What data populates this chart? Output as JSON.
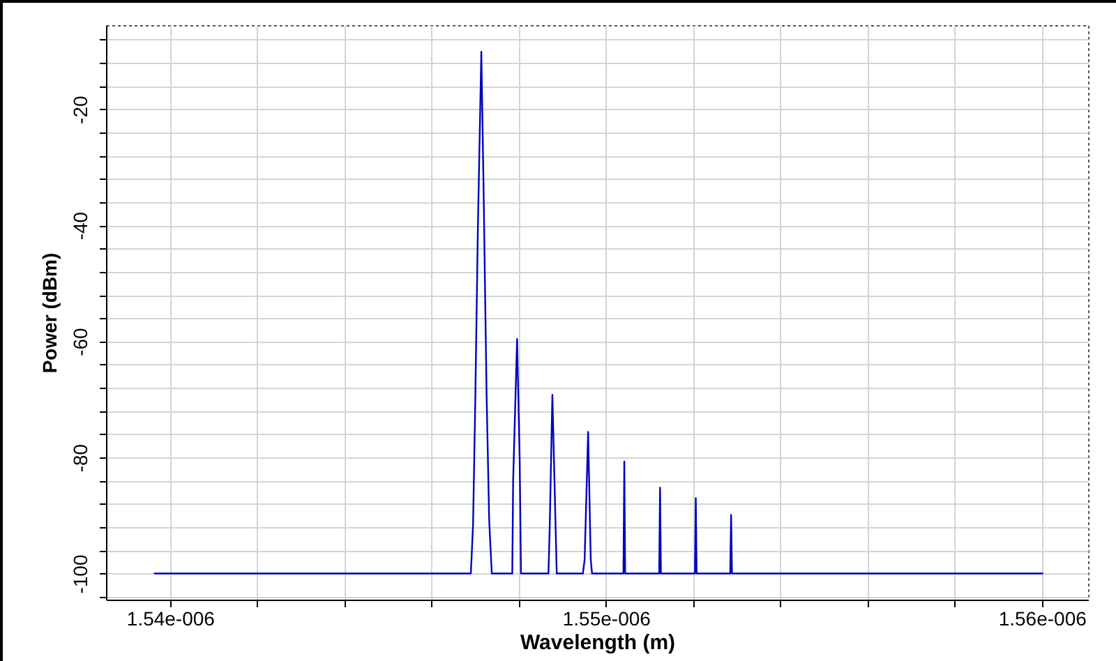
{
  "chart_data": {
    "type": "line",
    "xlabel": "Wavelength (m)",
    "ylabel": "Power (dBm)",
    "x": [
      1.53963e-06,
      1.5469e-06,
      1.54695e-06,
      1.547e-06,
      1.54706e-06,
      1.54714e-06,
      1.54719e-06,
      1.54726e-06,
      1.54732e-06,
      1.54738e-06,
      1.54785e-06,
      1.54787e-06,
      1.54796e-06,
      1.54802e-06,
      1.54805e-06,
      1.54868e-06,
      1.54871e-06,
      1.54877e-06,
      1.54884e-06,
      1.54887e-06,
      1.54947e-06,
      1.54951e-06,
      1.54959e-06,
      1.54965e-06,
      1.54968e-06,
      1.5504e-06,
      1.55042e-06,
      1.55044e-06,
      1.55122e-06,
      1.55124e-06,
      1.55126e-06,
      1.55204e-06,
      1.55206e-06,
      1.55208e-06,
      1.55285e-06,
      1.55287e-06,
      1.55289e-06,
      1.56003e-06
    ],
    "series": [
      {
        "color": "#0000c0",
        "values": [
          -100,
          -100,
          -91.6,
          -70.8,
          -40.9,
          -10.1,
          -32.9,
          -68.8,
          -90.8,
          -100,
          -100,
          -84,
          -59.6,
          -80.3,
          -100,
          -100,
          -91.6,
          -69.2,
          -90.8,
          -100,
          -100,
          -97.6,
          -75.6,
          -97.6,
          -100,
          -100,
          -80.7,
          -100,
          -100,
          -85.2,
          -100,
          -100,
          -87,
          -100,
          -100,
          -89.9,
          -100,
          -100
        ]
      }
    ],
    "xlim": [
      1.53853e-06,
      1.56106e-06
    ],
    "xticks": [
      {
        "value": 1.54e-06,
        "label": "1.54e-006"
      },
      {
        "value": 1.542e-06,
        "label": null
      },
      {
        "value": 1.544e-06,
        "label": null
      },
      {
        "value": 1.546e-06,
        "label": null
      },
      {
        "value": 1.548e-06,
        "label": null
      },
      {
        "value": 1.55e-06,
        "label": "1.55e-006"
      },
      {
        "value": 1.552e-06,
        "label": null
      },
      {
        "value": 1.554e-06,
        "label": null
      },
      {
        "value": 1.556e-06,
        "label": null
      },
      {
        "value": 1.558e-06,
        "label": null
      },
      {
        "value": 1.56e-06,
        "label": "1.56e-006"
      }
    ],
    "ylim": [
      -104.5,
      -5.5
    ],
    "yticks": [
      {
        "value": -104,
        "label": null
      },
      {
        "value": -100,
        "label": "-100"
      },
      {
        "value": -96,
        "label": null
      },
      {
        "value": -92,
        "label": null
      },
      {
        "value": -88,
        "label": null
      },
      {
        "value": -84,
        "label": null
      },
      -80,
      {
        "value": -76,
        "label": null
      },
      {
        "value": -72,
        "label": null
      },
      {
        "value": -68,
        "label": null
      },
      {
        "value": -64,
        "label": null
      },
      -60,
      {
        "value": -56,
        "label": null
      },
      {
        "value": -52,
        "label": null
      },
      {
        "value": -48,
        "label": null
      },
      {
        "value": -44,
        "label": null
      },
      -40,
      {
        "value": -36,
        "label": null
      },
      {
        "value": -32,
        "label": null
      },
      {
        "value": -28,
        "label": null
      },
      {
        "value": -24,
        "label": null
      },
      -20,
      {
        "value": -16,
        "label": null
      },
      {
        "value": -12,
        "label": null
      },
      {
        "value": -8,
        "label": null
      }
    ],
    "grid": true
  }
}
